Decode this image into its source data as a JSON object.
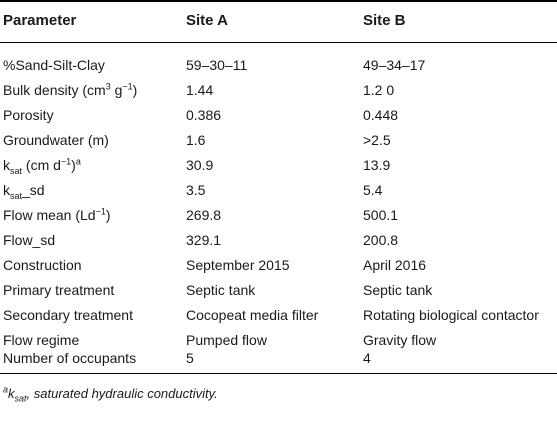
{
  "table": {
    "headers": [
      "Parameter",
      "Site A",
      "Site B"
    ],
    "rows": [
      {
        "param": "%Sand-Silt-Clay",
        "a": "59–30–11",
        "b": "49–34–17"
      },
      {
        "param_pre": "Bulk density (cm",
        "param_sup": "3",
        "param_mid": " g",
        "param_sup2": "−1",
        "param_post": ")",
        "a": "1.44",
        "b": "1.2 0"
      },
      {
        "param": "Porosity",
        "a": "0.386",
        "b": "0.448"
      },
      {
        "param": "Groundwater (m)",
        "a": "1.6",
        "b": ">2.5"
      },
      {
        "param_pre": "k",
        "param_sub": "sat",
        "param_mid": " (cm d",
        "param_sup": "−1",
        "param_post": ")",
        "param_note": "a",
        "a": "30.9",
        "b": "13.9"
      },
      {
        "param_pre": "k",
        "param_sub": "sat",
        "param_post": "_sd",
        "a": "3.5",
        "b": "5.4"
      },
      {
        "param_pre": "Flow mean (Ld",
        "param_sup": "−1",
        "param_post": ")",
        "a": "269.8",
        "b": "500.1"
      },
      {
        "param": "Flow_sd",
        "a": "329.1",
        "b": "200.8"
      },
      {
        "param": "Construction",
        "a": "September 2015",
        "b": "April 2016"
      },
      {
        "param": "Primary treatment",
        "a": "Septic tank",
        "b": "Septic tank"
      },
      {
        "param": "Secondary treatment",
        "a": "Cocopeat media filter",
        "b": "Rotating biological contactor"
      },
      {
        "param": "Flow regime",
        "a": "Pumped flow",
        "b": "Gravity flow"
      },
      {
        "param": "Number of occupants",
        "a": "5",
        "b": "4"
      }
    ]
  },
  "footnote": {
    "mark": "a",
    "symbol": "k",
    "symbol_sub": "sat",
    "text": ", saturated hydraulic conductivity."
  }
}
